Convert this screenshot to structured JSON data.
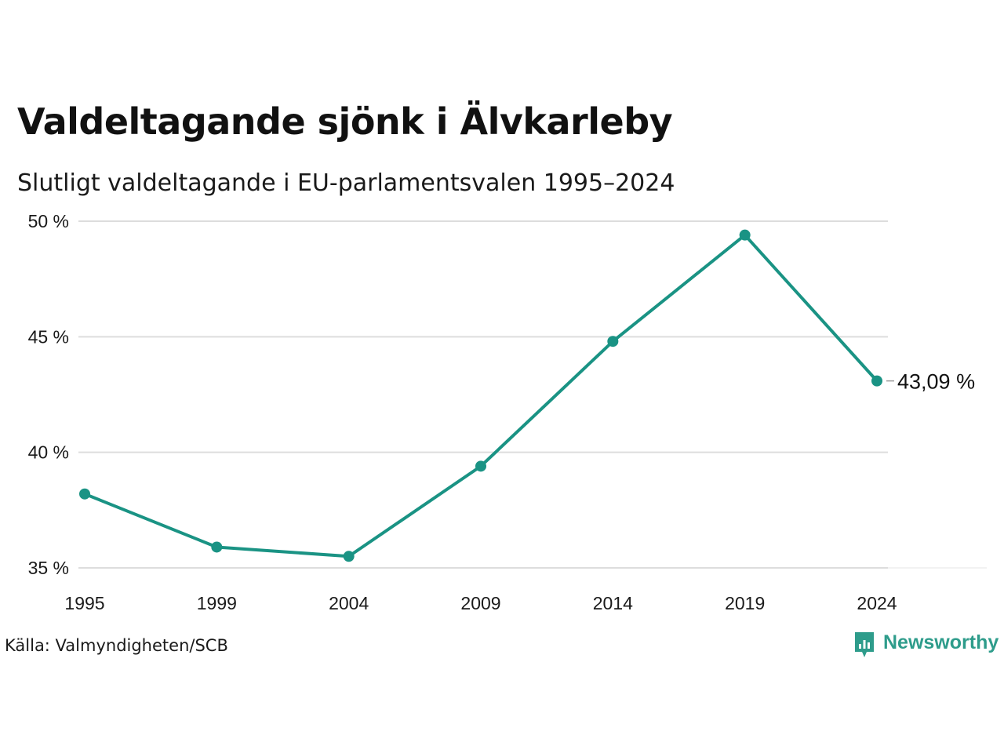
{
  "chart_data": {
    "type": "line",
    "title": "Valdeltagande sjönk i Älvkarleby",
    "subtitle": "Slutligt valdeltagande i EU-parlamentsvalen 1995–2024",
    "xlabel": "",
    "ylabel": "",
    "x": [
      "1995",
      "1999",
      "2004",
      "2009",
      "2014",
      "2019",
      "2024"
    ],
    "series": [
      {
        "values": [
          38.2,
          35.9,
          35.5,
          39.4,
          44.8,
          49.4,
          43.09
        ]
      }
    ],
    "ylim": [
      35,
      50
    ],
    "yticks": [
      35,
      40,
      45,
      50
    ],
    "ytick_labels": [
      "35 %",
      "40 %",
      "45 %",
      "50 %"
    ],
    "end_label": "43,09 %",
    "grid": true,
    "legend": "none",
    "colors": {
      "line": "#1a9384",
      "grid": "#dddddd",
      "brand": "#2e9c8b"
    }
  },
  "footer": {
    "source": "Källa: Valmyndigheten/SCB",
    "brand": "Newsworthy",
    "brand_icon": "newsworthy-logo-icon"
  }
}
